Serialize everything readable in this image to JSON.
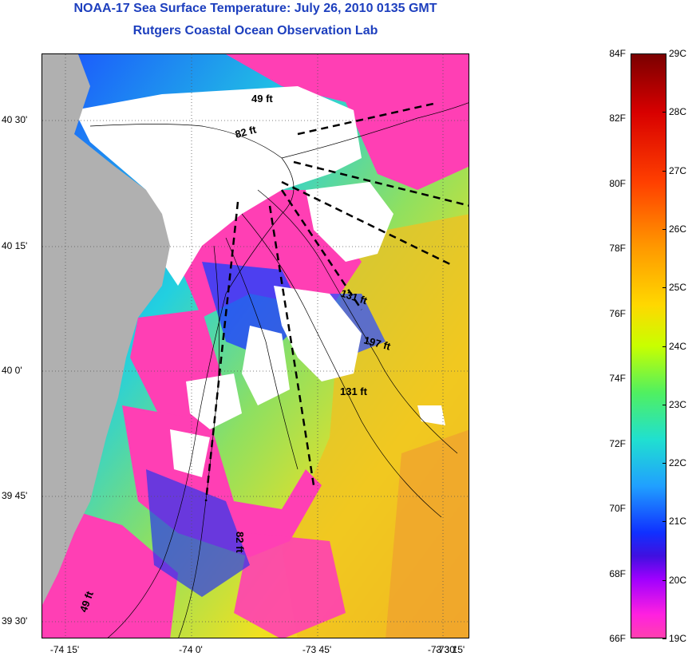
{
  "title": {
    "line1": "NOAA-17 Sea Surface Temperature:  July 26, 2010 0135 GMT",
    "line2": "Rutgers Coastal Ocean Observation Lab"
  },
  "map": {
    "x_labels": [
      "-74 15'",
      "-74 0'",
      "-73 45'",
      "-73 30'",
      "-73 15'"
    ],
    "y_labels": [
      "40 30'",
      "40 15'",
      "40 0'",
      "39 45'",
      "39 30'"
    ],
    "depth_labels": [
      "49 ft",
      "82 ft",
      "131 ft",
      "197 ft",
      "131 ft",
      "82 ft",
      "49 ft"
    ],
    "colors": {
      "land": "#b0b0b0",
      "cloud": "#ffffff",
      "cold": "#ff3fb4"
    }
  },
  "colorbar": {
    "fahrenheit": [
      "84F",
      "82F",
      "80F",
      "78F",
      "76F",
      "74F",
      "72F",
      "70F",
      "68F",
      "66F"
    ],
    "celsius": [
      "29C",
      "28C",
      "27C",
      "26C",
      "25C",
      "24C",
      "23C",
      "22C",
      "21C",
      "20C",
      "19C"
    ]
  }
}
